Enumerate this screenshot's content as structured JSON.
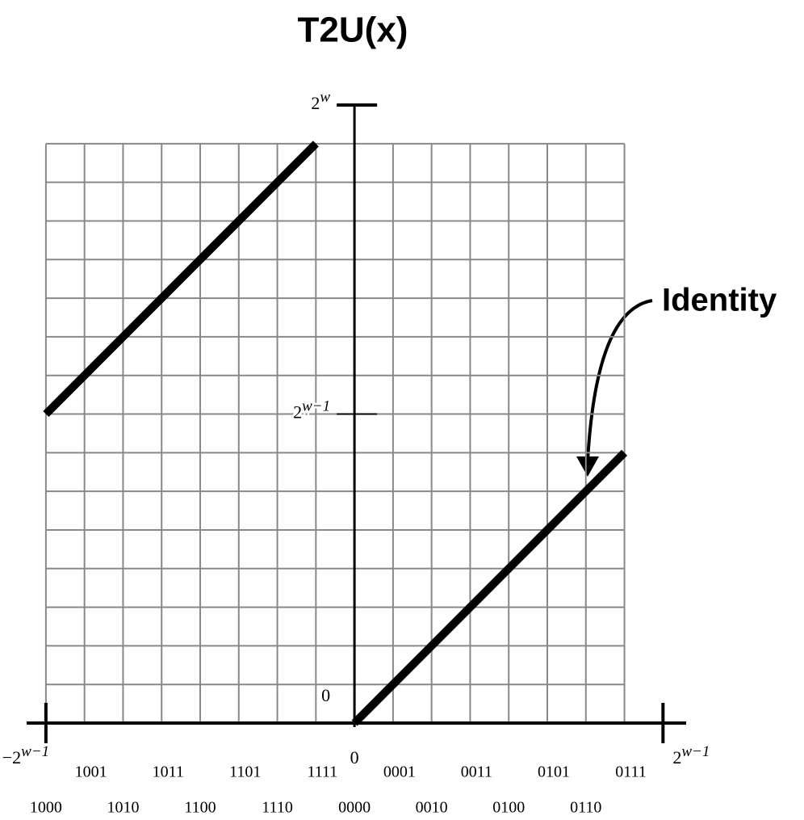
{
  "chart_data": {
    "type": "line",
    "title": "T2U(x)",
    "annotation": "Identity",
    "color": "#000000",
    "grid": true,
    "xlim": [
      -8.5,
      8.6
    ],
    "ylim": [
      0,
      16
    ],
    "xticks": [
      {
        "value": -8,
        "label": "−2",
        "sup": "w−1"
      },
      0,
      {
        "value": 8,
        "label": "2",
        "sup": "w−1"
      }
    ],
    "yticks": [
      0,
      {
        "value": 8,
        "label": "2",
        "sup": "w−1"
      },
      {
        "value": 16,
        "label": "2",
        "sup": "w"
      }
    ],
    "bit_patterns": [
      "1000",
      "1001",
      "1010",
      "1011",
      "1100",
      "1101",
      "1110",
      "1111",
      "0000",
      "0001",
      "0010",
      "0011",
      "0100",
      "0101",
      "0110",
      "0111"
    ],
    "series": [
      {
        "x": [
          -8,
          -7,
          -6,
          -5,
          -4,
          -3,
          -2,
          -1
        ],
        "values": [
          8,
          9,
          10,
          11,
          12,
          13,
          14,
          15
        ]
      },
      {
        "x": [
          0,
          1,
          2,
          3,
          4,
          5,
          6,
          7
        ],
        "values": [
          0,
          1,
          2,
          3,
          4,
          5,
          6,
          7
        ]
      }
    ]
  }
}
